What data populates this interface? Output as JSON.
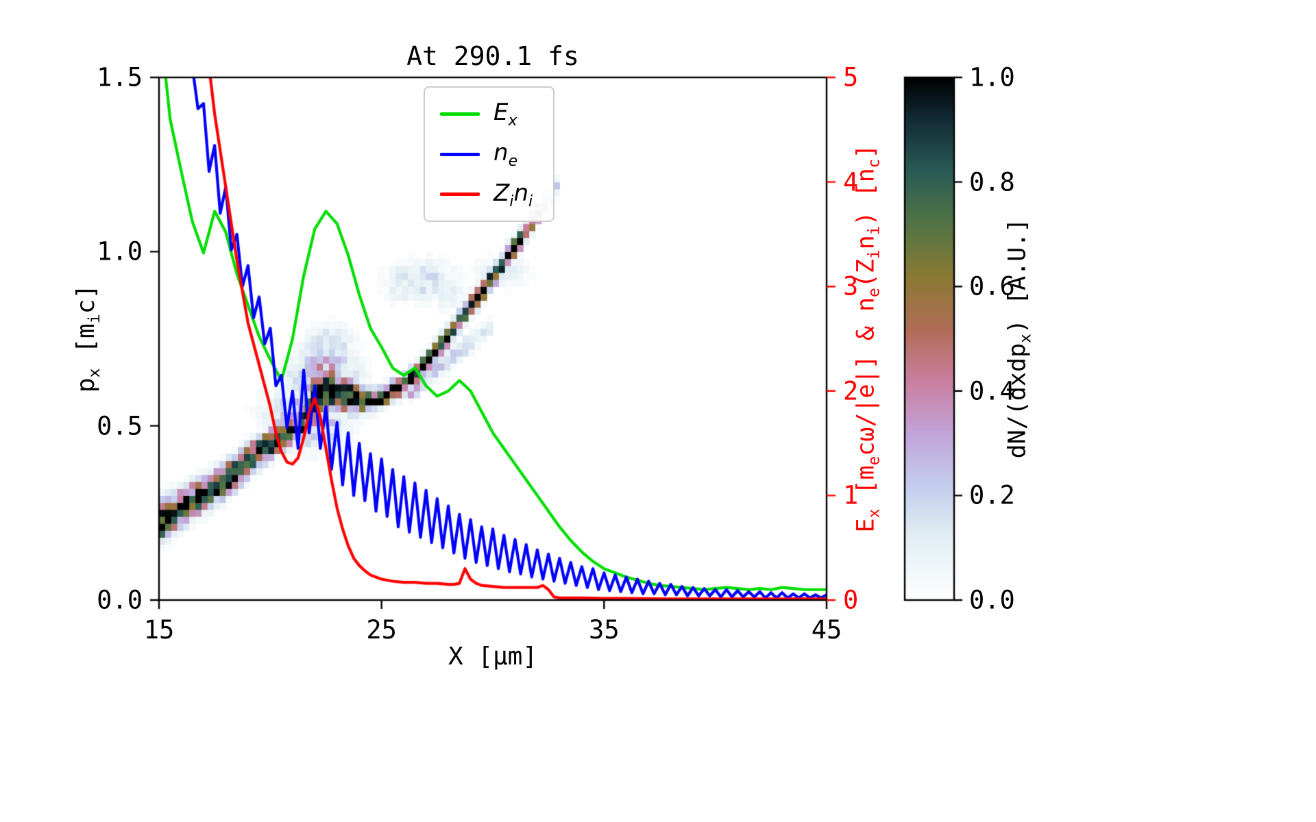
{
  "chart_data": {
    "type": [
      "heatmap",
      "line"
    ],
    "title": "At 290.1 fs",
    "xlabel": "X [μm]",
    "ylabel_left": "p_x [m_ic]",
    "ylabel_right": "E_x [m_ecω/|e|] & n_e(Z_in_i) [n_c]",
    "colorbar_label": "dN/(dxdp_x) [A.U.]",
    "x_range": [
      15,
      45
    ],
    "y_left_range": [
      0,
      1.5
    ],
    "y_right_range": [
      0,
      5
    ],
    "x_ticks": {
      "values": [
        15,
        25,
        35,
        45
      ],
      "labels": [
        "15",
        "25",
        "35",
        "45"
      ]
    },
    "y_left_ticks": {
      "values": [
        0,
        0.5,
        1.0,
        1.5
      ],
      "labels": [
        "0.0",
        "0.5",
        "1.0",
        "1.5"
      ]
    },
    "y_right_ticks": {
      "values": [
        0,
        1,
        2,
        3,
        4,
        5
      ],
      "labels": [
        "0",
        "1",
        "2",
        "3",
        "4",
        "5"
      ]
    },
    "colorbar_ticks": {
      "values": [
        0,
        0.2,
        0.4,
        0.6,
        0.8,
        1.0
      ],
      "labels": [
        "0.0",
        "0.2",
        "0.4",
        "0.6",
        "0.8",
        "1.0"
      ]
    },
    "right_axis_color": "#ff0000",
    "grid": false,
    "legend_position": "upper center",
    "series": [
      {
        "name": "E_x",
        "color": "#00dd00",
        "axis": "right",
        "points": [
          [
            15,
            5.6
          ],
          [
            15.5,
            4.6
          ],
          [
            16,
            4.1
          ],
          [
            16.5,
            3.62
          ],
          [
            17,
            3.32
          ],
          [
            17.5,
            3.72
          ],
          [
            18,
            3.52
          ],
          [
            18.5,
            3.12
          ],
          [
            19,
            2.82
          ],
          [
            19.5,
            2.52
          ],
          [
            20,
            2.3
          ],
          [
            20.5,
            2.1
          ],
          [
            21,
            2.5
          ],
          [
            21.5,
            3.1
          ],
          [
            22,
            3.55
          ],
          [
            22.5,
            3.72
          ],
          [
            23,
            3.6
          ],
          [
            23.5,
            3.3
          ],
          [
            24,
            2.92
          ],
          [
            24.5,
            2.6
          ],
          [
            25,
            2.42
          ],
          [
            25.5,
            2.22
          ],
          [
            26,
            2.15
          ],
          [
            26.5,
            2.22
          ],
          [
            27,
            2.05
          ],
          [
            27.5,
            1.95
          ],
          [
            28,
            2.0
          ],
          [
            28.5,
            2.1
          ],
          [
            29,
            2.0
          ],
          [
            29.5,
            1.8
          ],
          [
            30,
            1.6
          ],
          [
            30.5,
            1.45
          ],
          [
            31,
            1.3
          ],
          [
            31.5,
            1.15
          ],
          [
            32,
            1.0
          ],
          [
            32.5,
            0.85
          ],
          [
            33,
            0.7
          ],
          [
            33.5,
            0.57
          ],
          [
            34,
            0.46
          ],
          [
            34.5,
            0.37
          ],
          [
            35,
            0.3
          ],
          [
            35.5,
            0.26
          ],
          [
            36,
            0.22
          ],
          [
            36.5,
            0.19
          ],
          [
            37,
            0.16
          ],
          [
            37.5,
            0.14
          ],
          [
            38,
            0.13
          ],
          [
            38.5,
            0.12
          ],
          [
            39,
            0.11
          ],
          [
            39.5,
            0.1
          ],
          [
            40,
            0.11
          ],
          [
            40.5,
            0.12
          ],
          [
            41,
            0.11
          ],
          [
            41.5,
            0.1
          ],
          [
            42,
            0.11
          ],
          [
            42.5,
            0.1
          ],
          [
            43,
            0.12
          ],
          [
            43.5,
            0.11
          ],
          [
            44,
            0.1
          ],
          [
            44.5,
            0.1
          ],
          [
            45,
            0.1
          ]
        ]
      },
      {
        "name": "n_e",
        "color": "#0000ff",
        "axis": "right",
        "x0": 16.0,
        "dx": 0.25,
        "y": [
          5.9,
          5.4,
          5.1,
          4.7,
          4.75,
          4.1,
          4.35,
          3.7,
          3.95,
          3.35,
          3.5,
          3.0,
          3.2,
          2.7,
          2.9,
          2.45,
          2.6,
          2.05,
          2.15,
          1.65,
          2.0,
          1.45,
          2.2,
          1.6,
          2.05,
          1.45,
          1.85,
          1.25,
          1.7,
          1.1,
          1.6,
          1.0,
          1.5,
          0.95,
          1.4,
          0.85,
          1.35,
          0.8,
          1.25,
          0.7,
          1.18,
          0.65,
          1.12,
          0.6,
          1.05,
          0.55,
          0.97,
          0.5,
          0.9,
          0.45,
          0.82,
          0.4,
          0.77,
          0.36,
          0.7,
          0.33,
          0.68,
          0.3,
          0.62,
          0.27,
          0.58,
          0.25,
          0.53,
          0.22,
          0.48,
          0.2,
          0.44,
          0.18,
          0.4,
          0.16,
          0.36,
          0.14,
          0.32,
          0.12,
          0.3,
          0.1,
          0.26,
          0.09,
          0.24,
          0.08,
          0.22,
          0.07,
          0.2,
          0.06,
          0.18,
          0.06,
          0.16,
          0.05,
          0.15,
          0.05,
          0.13,
          0.04,
          0.12,
          0.04,
          0.11,
          0.04,
          0.1,
          0.03,
          0.1,
          0.03,
          0.09,
          0.03,
          0.08,
          0.03,
          0.08,
          0.02,
          0.07,
          0.02,
          0.07,
          0.02,
          0.06,
          0.02,
          0.06,
          0.02,
          0.05,
          0.02,
          0.05
        ]
      },
      {
        "name": "Z_in_i",
        "color": "#ff0000",
        "axis": "right",
        "points": [
          [
            17,
            5.6
          ],
          [
            17.25,
            5.1
          ],
          [
            17.5,
            4.65
          ],
          [
            17.75,
            4.3
          ],
          [
            18,
            3.95
          ],
          [
            18.25,
            3.6
          ],
          [
            18.5,
            3.25
          ],
          [
            18.75,
            2.95
          ],
          [
            19,
            2.65
          ],
          [
            19.25,
            2.45
          ],
          [
            19.5,
            2.25
          ],
          [
            19.75,
            2.05
          ],
          [
            20,
            1.85
          ],
          [
            20.25,
            1.6
          ],
          [
            20.5,
            1.42
          ],
          [
            20.75,
            1.32
          ],
          [
            21,
            1.3
          ],
          [
            21.25,
            1.36
          ],
          [
            21.5,
            1.55
          ],
          [
            21.75,
            1.8
          ],
          [
            22,
            1.93
          ],
          [
            22.25,
            1.75
          ],
          [
            22.5,
            1.45
          ],
          [
            22.75,
            1.15
          ],
          [
            23,
            0.88
          ],
          [
            23.25,
            0.68
          ],
          [
            23.5,
            0.52
          ],
          [
            23.75,
            0.4
          ],
          [
            24,
            0.33
          ],
          [
            24.25,
            0.28
          ],
          [
            24.5,
            0.24
          ],
          [
            24.75,
            0.22
          ],
          [
            25,
            0.2
          ],
          [
            25.5,
            0.18
          ],
          [
            26,
            0.17
          ],
          [
            26.5,
            0.17
          ],
          [
            27,
            0.16
          ],
          [
            27.5,
            0.16
          ],
          [
            28,
            0.15
          ],
          [
            28.25,
            0.15
          ],
          [
            28.5,
            0.16
          ],
          [
            28.75,
            0.3
          ],
          [
            29,
            0.2
          ],
          [
            29.25,
            0.16
          ],
          [
            29.5,
            0.14
          ],
          [
            30,
            0.13
          ],
          [
            30.5,
            0.12
          ],
          [
            31,
            0.12
          ],
          [
            31.5,
            0.12
          ],
          [
            32,
            0.12
          ],
          [
            32.25,
            0.14
          ],
          [
            32.5,
            0.1
          ],
          [
            32.75,
            0.03
          ],
          [
            33,
            0.02
          ],
          [
            34,
            0.02
          ],
          [
            35,
            0.015
          ],
          [
            36,
            0.015
          ],
          [
            38,
            0.01
          ],
          [
            40,
            0.01
          ],
          [
            42,
            0.01
          ],
          [
            45,
            0.01
          ]
        ]
      }
    ],
    "heatmap": {
      "name": "dN/(dxdp_x)",
      "value_range": [
        0,
        1
      ],
      "grid": [
        110,
        75
      ],
      "noise_seed": 7,
      "bands": [
        [
          [
            15,
            0.22,
            0.034,
            1
          ],
          [
            15.5,
            0.245,
            0.032,
            1
          ],
          [
            16,
            0.265,
            0.03,
            1
          ],
          [
            16.5,
            0.285,
            0.028,
            1
          ],
          [
            17,
            0.302,
            0.027,
            1
          ],
          [
            17.5,
            0.322,
            0.027,
            1
          ],
          [
            18,
            0.345,
            0.026,
            1
          ],
          [
            18.5,
            0.37,
            0.026,
            1
          ],
          [
            19,
            0.4,
            0.025,
            1
          ],
          [
            19.5,
            0.425,
            0.024,
            1
          ],
          [
            20,
            0.45,
            0.023,
            1
          ],
          [
            20.5,
            0.468,
            0.022,
            1
          ],
          [
            21,
            0.487,
            0.022,
            1
          ],
          [
            21.4,
            0.505,
            0.022,
            1
          ],
          [
            21.8,
            0.55,
            0.028,
            1
          ],
          [
            22.1,
            0.585,
            0.032,
            1
          ],
          [
            22.5,
            0.6,
            0.034,
            1
          ],
          [
            23,
            0.6,
            0.032,
            1
          ],
          [
            23.5,
            0.588,
            0.028,
            1
          ],
          [
            24,
            0.575,
            0.022,
            1
          ],
          [
            24.5,
            0.57,
            0.018,
            1
          ],
          [
            25,
            0.583,
            0.016,
            1
          ],
          [
            25.5,
            0.6,
            0.015,
            1
          ],
          [
            26,
            0.62,
            0.014,
            1
          ],
          [
            26.5,
            0.648,
            0.013,
            1
          ],
          [
            27,
            0.683,
            0.013,
            1
          ],
          [
            27.5,
            0.72,
            0.013,
            1
          ],
          [
            28,
            0.758,
            0.013,
            1
          ],
          [
            28.5,
            0.8,
            0.013,
            1
          ],
          [
            29,
            0.843,
            0.013,
            1
          ],
          [
            29.5,
            0.885,
            0.013,
            1
          ],
          [
            30,
            0.928,
            0.013,
            1
          ],
          [
            30.5,
            0.972,
            0.013,
            0.95
          ],
          [
            31,
            1.018,
            0.013,
            0.9
          ],
          [
            31.5,
            1.065,
            0.013,
            0.8
          ],
          [
            32,
            1.11,
            0.014,
            0.6
          ],
          [
            32.4,
            1.148,
            0.015,
            0.4
          ],
          [
            32.8,
            1.185,
            0.016,
            0.2
          ]
        ],
        [
          [
            26.3,
            0.6,
            0.016,
            0.32
          ],
          [
            27,
            0.635,
            0.016,
            0.3
          ],
          [
            27.7,
            0.672,
            0.016,
            0.27
          ],
          [
            28.4,
            0.71,
            0.016,
            0.24
          ],
          [
            29.1,
            0.745,
            0.016,
            0.2
          ],
          [
            29.8,
            0.78,
            0.016,
            0.15
          ]
        ]
      ],
      "patches": [
        [
          22.4,
          0.645,
          0.9,
          0.045,
          0.4
        ],
        [
          22.6,
          0.72,
          0.7,
          0.04,
          0.22
        ],
        [
          21.6,
          0.52,
          1.1,
          0.05,
          0.35
        ],
        [
          26.8,
          0.92,
          0.9,
          0.035,
          0.2
        ],
        [
          25.9,
          0.9,
          0.5,
          0.03,
          0.12
        ],
        [
          30.4,
          0.945,
          0.7,
          0.028,
          0.13
        ],
        [
          28.0,
          0.88,
          0.5,
          0.03,
          0.1
        ]
      ],
      "colormap": [
        [
          0,
          "#ffffff"
        ],
        [
          0.12,
          "#e2eef3"
        ],
        [
          0.22,
          "#c3cdec"
        ],
        [
          0.32,
          "#c2a3d9"
        ],
        [
          0.42,
          "#c97f9f"
        ],
        [
          0.52,
          "#b06c56"
        ],
        [
          0.62,
          "#8a7a33"
        ],
        [
          0.72,
          "#527445"
        ],
        [
          0.82,
          "#2a5b55"
        ],
        [
          0.92,
          "#122b35"
        ],
        [
          1,
          "#000000"
        ]
      ]
    },
    "legend": {
      "items": [
        {
          "label": "E_x",
          "color": "#00dd00"
        },
        {
          "label": "n_e",
          "color": "#0000ff"
        },
        {
          "label": "Z_in_i",
          "color": "#ff0000"
        }
      ]
    }
  }
}
